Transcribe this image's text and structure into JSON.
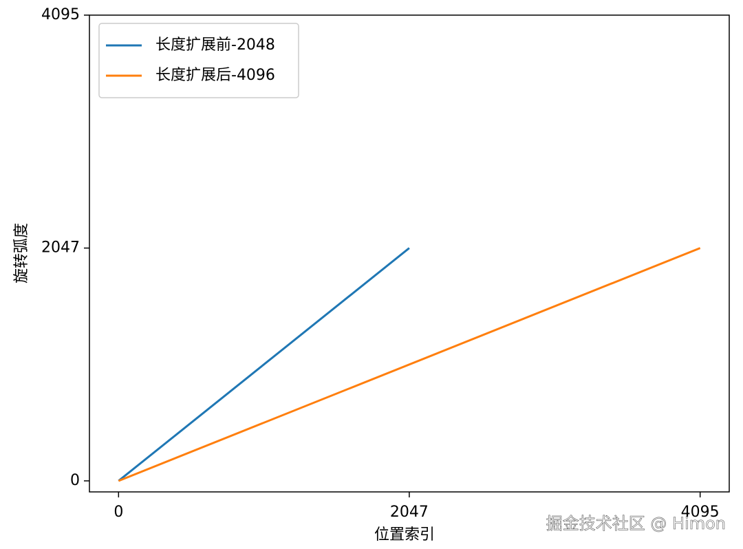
{
  "chart_data": {
    "type": "line",
    "xlabel": "位置索引",
    "ylabel": "旋转弧度",
    "series": [
      {
        "name": "长度扩展前-2048",
        "color": "#1f77b4",
        "x": [
          0,
          2047
        ],
        "values": [
          0,
          2047
        ]
      },
      {
        "name": "长度扩展后-4096",
        "color": "#ff7f0e",
        "x": [
          0,
          4095
        ],
        "values": [
          0,
          2047
        ]
      }
    ],
    "xlim": [
      -205,
      4300
    ],
    "xticks": [
      0,
      2047,
      4095
    ],
    "ylim": [
      -97,
      4095
    ],
    "yticks": [
      0,
      2047,
      4095
    ],
    "legend": "upper left",
    "watermark": "掘金技术社区 @ Himon"
  }
}
